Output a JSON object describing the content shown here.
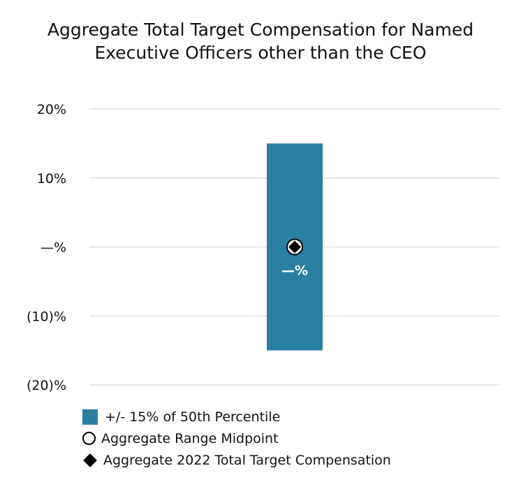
{
  "chart_data": {
    "type": "bar",
    "title": "Aggregate Total Target Compensation for Named Executive Officers other than the CEO",
    "y_tick_labels": [
      "20%",
      "10%",
      "—%",
      "(10)%",
      "(20)%"
    ],
    "y_ticks": [
      20,
      10,
      0,
      -10,
      -20
    ],
    "ylim": [
      -20,
      20
    ],
    "grid": true,
    "legend_position": "bottom-left",
    "range": {
      "low": -15,
      "high": 15
    },
    "midpoint": 0,
    "actual": 0,
    "data_label": "—%",
    "series": [
      {
        "name": "+/- 15% of 50th Percentile",
        "type": "range-bar",
        "color": "#2a7fa0"
      },
      {
        "name": "Aggregate Range Midpoint",
        "type": "marker",
        "marker": "circle"
      },
      {
        "name": "Aggregate 2022 Total Target Compensation",
        "type": "marker",
        "marker": "diamond"
      }
    ]
  }
}
